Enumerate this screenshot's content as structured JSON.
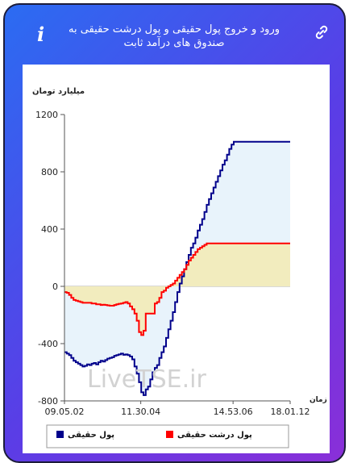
{
  "header": {
    "title": "ورود و خروج پول حقیقی و پول درشت حقیقی به صندوق های درآمد ثابت",
    "info_symbol": "i"
  },
  "watermark": "LiveTSE.ir",
  "colors": {
    "real_money": "#00008b",
    "large_real_money": "#ff0000",
    "area_real": "#e8f3fb",
    "area_large": "#f2ecbe"
  },
  "chart_data": {
    "type": "area",
    "ylabel": "میلیارد تومان",
    "xlabel": "زمان",
    "ylim": [
      -800,
      1200
    ],
    "yticks": [
      -800,
      -400,
      0,
      400,
      800,
      1200
    ],
    "xticks": [
      "09.05.02",
      "11.30.04",
      "14.53.06",
      "18.01.12"
    ],
    "xtick_positions": [
      0,
      0.338,
      0.747,
      1
    ],
    "legend": {
      "position": "bottom",
      "entries": [
        "پول حقیقی",
        "پول درشت حقیقی"
      ]
    },
    "series": [
      {
        "name": "پول حقیقی",
        "color": "#00008b",
        "x": [
          0,
          0.01,
          0.02,
          0.03,
          0.04,
          0.05,
          0.06,
          0.07,
          0.08,
          0.09,
          0.1,
          0.11,
          0.12,
          0.13,
          0.14,
          0.15,
          0.16,
          0.17,
          0.18,
          0.19,
          0.2,
          0.21,
          0.22,
          0.23,
          0.24,
          0.25,
          0.26,
          0.27,
          0.28,
          0.29,
          0.3,
          0.31,
          0.32,
          0.33,
          0.34,
          0.35,
          0.36,
          0.37,
          0.38,
          0.39,
          0.4,
          0.41,
          0.42,
          0.43,
          0.44,
          0.45,
          0.46,
          0.47,
          0.48,
          0.49,
          0.5,
          0.51,
          0.52,
          0.53,
          0.54,
          0.55,
          0.56,
          0.57,
          0.58,
          0.59,
          0.6,
          0.61,
          0.62,
          0.63,
          0.64,
          0.65,
          0.66,
          0.67,
          0.68,
          0.69,
          0.7,
          0.71,
          0.72,
          0.73,
          0.74,
          0.75,
          0.76,
          0.77,
          1.0
        ],
        "values": [
          -460,
          -470,
          -480,
          -500,
          -520,
          -530,
          -540,
          -550,
          -560,
          -555,
          -545,
          -550,
          -540,
          -535,
          -545,
          -530,
          -520,
          -525,
          -515,
          -505,
          -500,
          -495,
          -485,
          -480,
          -475,
          -470,
          -478,
          -475,
          -480,
          -490,
          -510,
          -560,
          -610,
          -670,
          -740,
          -760,
          -720,
          -700,
          -650,
          -600,
          -570,
          -550,
          -500,
          -460,
          -420,
          -360,
          -300,
          -240,
          -180,
          -110,
          -40,
          20,
          70,
          120,
          170,
          220,
          270,
          300,
          340,
          390,
          430,
          470,
          520,
          570,
          610,
          650,
          690,
          730,
          770,
          810,
          850,
          880,
          920,
          960,
          990,
          1010,
          1010,
          1010,
          1010
        ]
      },
      {
        "name": "پول درشت حقیقی",
        "color": "#ff0000",
        "x": [
          0,
          0.01,
          0.02,
          0.03,
          0.04,
          0.05,
          0.06,
          0.07,
          0.08,
          0.09,
          0.1,
          0.11,
          0.12,
          0.13,
          0.14,
          0.15,
          0.16,
          0.17,
          0.18,
          0.19,
          0.2,
          0.21,
          0.22,
          0.23,
          0.24,
          0.25,
          0.26,
          0.27,
          0.28,
          0.29,
          0.3,
          0.31,
          0.32,
          0.33,
          0.34,
          0.35,
          0.36,
          0.37,
          0.38,
          0.39,
          0.4,
          0.41,
          0.42,
          0.43,
          0.44,
          0.45,
          0.46,
          0.47,
          0.48,
          0.49,
          0.5,
          0.51,
          0.52,
          0.53,
          0.54,
          0.55,
          0.56,
          0.57,
          0.58,
          0.59,
          0.6,
          0.61,
          0.62,
          0.63,
          0.64,
          0.65,
          0.66,
          0.67,
          0.68,
          0.69,
          0.7,
          0.71,
          0.72,
          0.73,
          0.74,
          0.75,
          0.76,
          0.77,
          1.0
        ],
        "values": [
          -40,
          -45,
          -60,
          -80,
          -95,
          -100,
          -105,
          -110,
          -115,
          -115,
          -115,
          -115,
          -120,
          -120,
          -125,
          -125,
          -130,
          -128,
          -130,
          -133,
          -135,
          -135,
          -130,
          -125,
          -122,
          -120,
          -115,
          -110,
          -120,
          -140,
          -160,
          -190,
          -240,
          -320,
          -340,
          -310,
          -190,
          -190,
          -190,
          -190,
          -120,
          -110,
          -80,
          -40,
          -30,
          -10,
          0,
          10,
          20,
          40,
          60,
          80,
          100,
          120,
          150,
          180,
          200,
          220,
          240,
          260,
          270,
          280,
          290,
          300,
          300,
          300,
          300,
          300,
          300,
          300,
          300,
          300,
          300,
          300,
          300,
          300,
          300,
          300,
          300
        ]
      }
    ]
  }
}
